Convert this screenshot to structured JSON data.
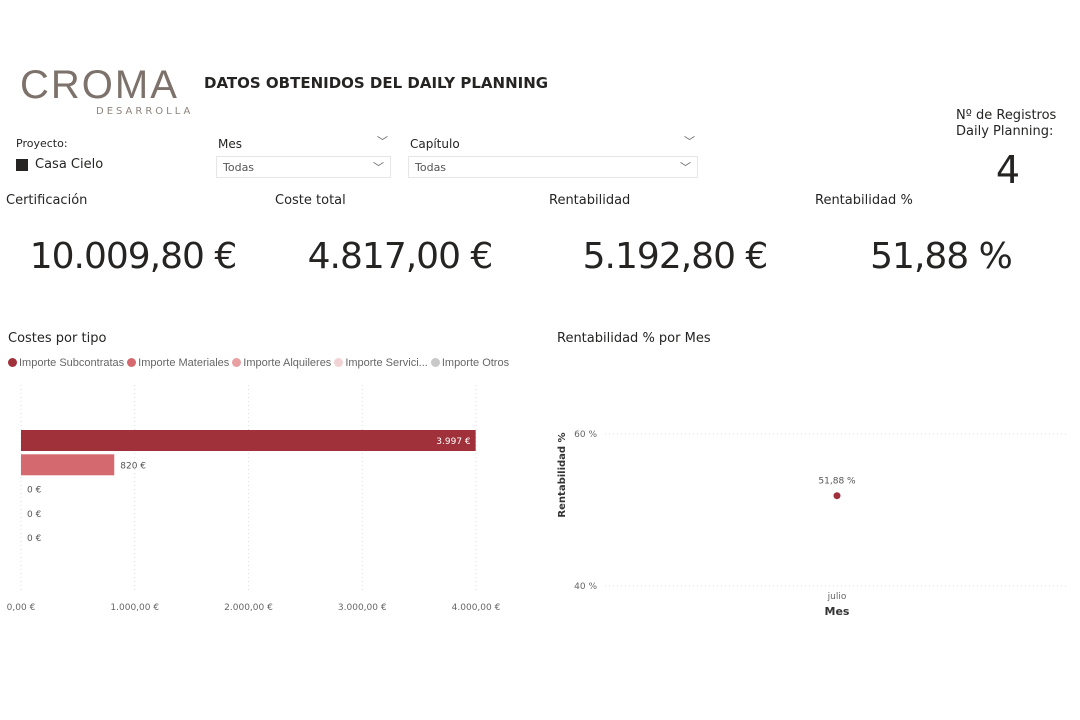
{
  "logo": {
    "main": "CROMA",
    "sub": "DESARROLLA"
  },
  "header": {
    "title": "DATOS OBTENIDOS DEL DAILY PLANNING"
  },
  "filters": {
    "proyecto_label": "Proyecto:",
    "proyecto_value": "Casa Cielo",
    "mes_label": "Mes",
    "mes_value": "Todas",
    "capitulo_label": "Capítulo",
    "capitulo_value": "Todas"
  },
  "registros": {
    "label1": "Nº de Registros",
    "label2": "Daily Planning:",
    "value": "4"
  },
  "kpis": [
    {
      "label": "Certificación",
      "value": "10.009,80 €"
    },
    {
      "label": "Coste total",
      "value": "4.817,00 €"
    },
    {
      "label": "Rentabilidad",
      "value": "5.192,80 €"
    },
    {
      "label": "Rentabilidad %",
      "value": "51,88 %"
    }
  ],
  "chart_data": [
    {
      "type": "bar",
      "orientation": "horizontal",
      "title": "Costes por tipo",
      "series": [
        {
          "name": "Importe Subcontratas",
          "value": 3997,
          "label": "3.997 €",
          "color": "#a0303a"
        },
        {
          "name": "Importe Materiales",
          "value": 820,
          "label": "820 €",
          "color": "#d46a6f"
        },
        {
          "name": "Importe Alquileres",
          "value": 0,
          "label": "0 €",
          "color": "#e8a0a3"
        },
        {
          "name": "Importe Servici...",
          "value": 0,
          "label": "0 €",
          "color": "#f2d3d5"
        },
        {
          "name": "Importe Otros",
          "value": 0,
          "label": "0 €",
          "color": "#c8c8c8"
        }
      ],
      "xlim": [
        0,
        4000
      ],
      "ticks": [
        0,
        1000,
        2000,
        3000,
        4000
      ],
      "tick_labels": [
        "0,00 €",
        "1.000,00 €",
        "2.000,00 €",
        "3.000,00 €",
        "4.000,00 €"
      ],
      "legend": "top",
      "grid": true
    },
    {
      "type": "scatter",
      "title": "Rentabilidad % por Mes",
      "xlabel": "Mes",
      "ylabel": "Rentabilidad %",
      "categories": [
        "julio"
      ],
      "values": [
        51.88
      ],
      "labels": [
        "51,88 %"
      ],
      "ylim": [
        40,
        60
      ],
      "yticks": [
        40,
        60
      ],
      "ytick_labels": [
        "40 %",
        "60 %"
      ],
      "color": "#a0303a",
      "grid": true
    }
  ]
}
